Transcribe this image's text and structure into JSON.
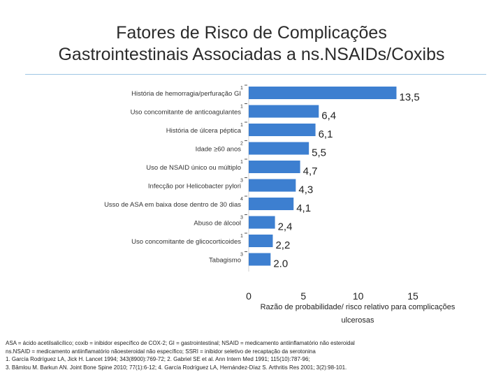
{
  "header": {
    "title_line1": "Fatores de Risco de Complicações",
    "title_line2": "Gastrointestinais Associadas a ns.NSAIDs/Coxibs"
  },
  "chart_data": {
    "type": "bar",
    "orientation": "horizontal",
    "categories": [
      {
        "label": "História de hemorragia/perfuração GI",
        "sup": "1"
      },
      {
        "label": "Uso concomitante de anticoagulantes",
        "sup": "1"
      },
      {
        "label": "História de úlcera péptica",
        "sup": "1"
      },
      {
        "label": "Idade ≥60 anos",
        "sup": "2"
      },
      {
        "label": "Uso de NSAID único ou múltiplo",
        "sup": "1"
      },
      {
        "label": "Infecção por Helicobacter pylori",
        "sup": "3"
      },
      {
        "label": "Usso de ASA em baixa dose dentro de 30 dias",
        "sup": "4"
      },
      {
        "label": "Abuso de álcool",
        "sup": "3"
      },
      {
        "label": "Uso concomitante de glicocorticoides",
        "sup": "1"
      },
      {
        "label": "Tabagismo",
        "sup": "3"
      }
    ],
    "values": [
      13.5,
      6.4,
      6.1,
      5.5,
      4.7,
      4.3,
      4.1,
      2.4,
      2.2,
      2.0
    ],
    "data_labels": [
      "13,5",
      "6,4",
      "6,1",
      "5,5",
      "4,7",
      "4,3",
      "4,1",
      "2,4",
      "2,2",
      "2.0"
    ],
    "xticks": [
      0,
      5,
      10,
      15
    ],
    "xlim": [
      0,
      15
    ],
    "xlabel_line1": "Razão de probabilidade/ risco relativo para complicações",
    "xlabel_line2": "ulcerosas",
    "bar_color": "#3d7fd0"
  },
  "footnotes": {
    "line1": "ASA = ácido acetilsalicílico; coxib = inibidor específico de COX-2; GI = gastrointestinal; NSAID = medicamento antiinflamatório não esteroidal",
    "line2": "ns.NSAID = medicamento antiinflamatório nãoesteroidal não específico; SSRI = inibidor seletivo de recaptação da serotonina",
    "line3": "1. García Rodríguez LA, Jick H. Lancet 1994; 343(8900):769-72; 2. Gabriel SE et al. Ann Intern Med 1991; 115(10):787-96;",
    "line4": "3. Bâmlou M. Barkun AN. Joint Bone Spine 2010; 77(1):6-12; 4. García Rodríguez LA, Hernández-Díaz S. Arthritis Res 2001; 3(2):98-101."
  }
}
